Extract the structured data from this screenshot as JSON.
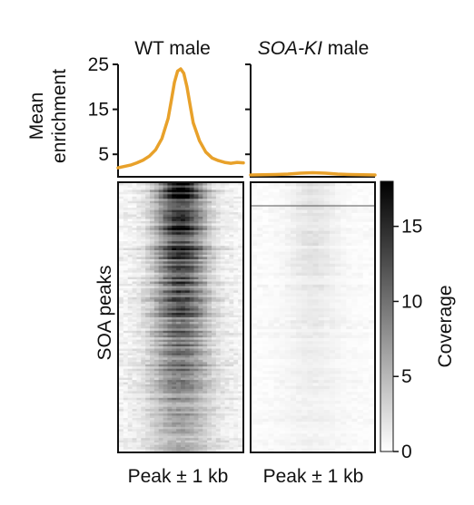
{
  "chart_data": [
    {
      "type": "line",
      "panel": "top-left",
      "title": "WT male",
      "ylabel": "Mean enrichment",
      "ylabel_lines": [
        "Mean",
        "enrichment"
      ],
      "ylim": [
        0,
        25
      ],
      "yticks": [
        25,
        15,
        5
      ],
      "x": [
        -1.0,
        -0.9,
        -0.8,
        -0.7,
        -0.6,
        -0.5,
        -0.4,
        -0.3,
        -0.2,
        -0.15,
        -0.1,
        -0.05,
        0.0,
        0.05,
        0.1,
        0.15,
        0.2,
        0.3,
        0.4,
        0.5,
        0.6,
        0.7,
        0.8,
        0.9,
        1.0
      ],
      "series": [
        {
          "color": "#e8a12a",
          "values": [
            2.0,
            2.3,
            2.6,
            3.1,
            3.7,
            4.6,
            6.0,
            8.5,
            13.0,
            17.0,
            21.0,
            23.5,
            24.0,
            23.0,
            20.0,
            16.0,
            12.0,
            8.0,
            5.5,
            4.2,
            3.6,
            3.2,
            3.0,
            3.2,
            3.1
          ]
        }
      ]
    },
    {
      "type": "line",
      "panel": "top-right",
      "title_italic": "SOA-KI",
      "title_rest": " male",
      "ylim": [
        0,
        25
      ],
      "x": [
        -1.0,
        -0.8,
        -0.6,
        -0.4,
        -0.2,
        0.0,
        0.2,
        0.4,
        0.6,
        0.8,
        1.0
      ],
      "series": [
        {
          "color": "#e8a12a",
          "values": [
            0.4,
            0.45,
            0.5,
            0.6,
            0.8,
            0.9,
            0.8,
            0.6,
            0.5,
            0.45,
            0.4
          ]
        }
      ]
    },
    {
      "type": "heatmap",
      "panel": "bottom-left",
      "ylabel": "SOA peaks",
      "xlabel": "Peak ± 1 kb",
      "colormap": [
        "#ffffff",
        "#000000"
      ],
      "vlim": [
        0,
        18
      ],
      "description_values": {
        "center_max": 18,
        "background": 1.5
      }
    },
    {
      "type": "heatmap",
      "panel": "bottom-right",
      "xlabel": "Peak ± 1 kb",
      "colormap": [
        "#ffffff",
        "#000000"
      ],
      "vlim": [
        0,
        18
      ],
      "description_values": {
        "center_max": 2,
        "background": 0.6
      }
    }
  ],
  "colorbar": {
    "label": "Coverage",
    "ticks": [
      15,
      10,
      5,
      0
    ],
    "vlim": [
      0,
      18
    ],
    "colors": [
      "#ffffff",
      "#000000"
    ]
  }
}
